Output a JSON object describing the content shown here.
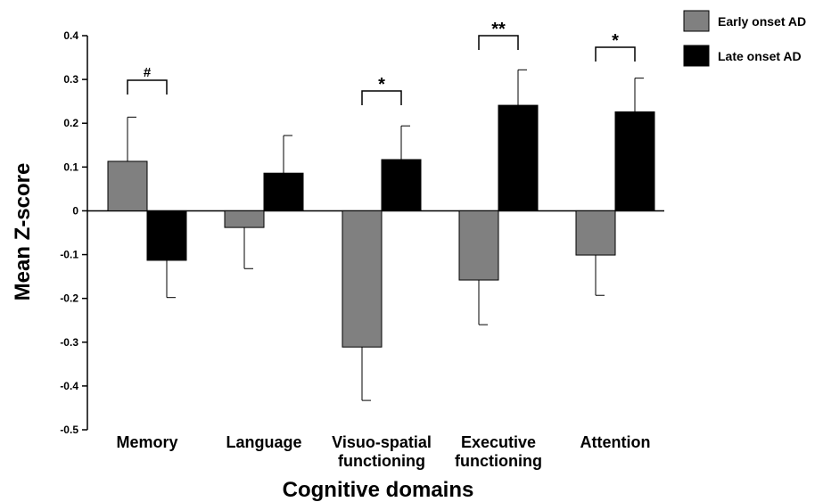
{
  "chart_data": {
    "type": "bar",
    "xlabel": "Cognitive domains",
    "ylabel": "Mean Z-score",
    "ylim": [
      -0.5,
      0.4
    ],
    "yticks": [
      "0.4",
      "0.3",
      "0.2",
      "0.1",
      "0",
      "-0.1",
      "-0.2",
      "-0.3",
      "-0.4",
      "-0.5"
    ],
    "categories": [
      [
        "Memory"
      ],
      [
        "Language"
      ],
      [
        "Visuo-spatial",
        "functioning"
      ],
      [
        "Executive",
        "functioning"
      ],
      [
        "Attention"
      ]
    ],
    "series": [
      {
        "name": "Early onset AD",
        "color": "#808080",
        "values": [
          0.113,
          -0.038,
          -0.311,
          -0.158,
          -0.101
        ],
        "errors": [
          0.101,
          0.094,
          0.122,
          0.102,
          0.092
        ]
      },
      {
        "name": "Late onset AD",
        "color": "#000000",
        "values": [
          -0.113,
          0.086,
          0.117,
          0.241,
          0.226
        ],
        "errors": [
          0.085,
          0.086,
          0.077,
          0.081,
          0.077
        ]
      }
    ],
    "significance": [
      {
        "category_index": 0,
        "label": "#"
      },
      {
        "category_index": 2,
        "label": "*"
      },
      {
        "category_index": 3,
        "label": "**"
      },
      {
        "category_index": 4,
        "label": "*"
      }
    ],
    "grid": false,
    "legend_position": "top-right"
  }
}
